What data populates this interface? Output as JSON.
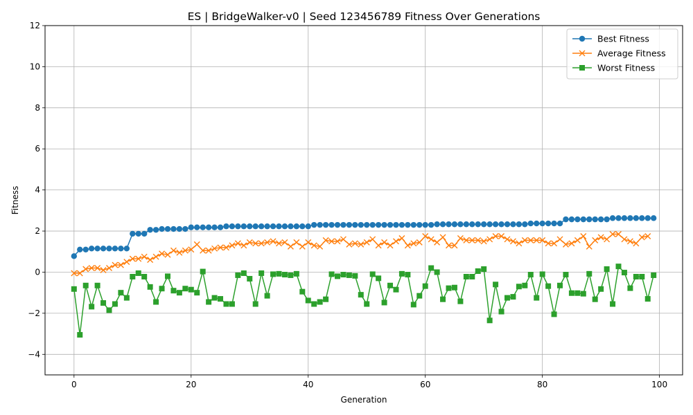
{
  "chart_data": {
    "type": "line",
    "title": "ES | BridgeWalker-v0 | Seed 123456789 Fitness Over Generations",
    "xlabel": "Generation",
    "ylabel": "Fitness",
    "xlim": [
      -4.95,
      103.95
    ],
    "ylim": [
      -5,
      12
    ],
    "xticks": [
      0,
      20,
      40,
      60,
      80,
      100
    ],
    "yticks": [
      -4,
      -2,
      0,
      2,
      4,
      6,
      8,
      10,
      12
    ],
    "grid": true,
    "legend_position": "upper right",
    "series": [
      {
        "name": "Best Fitness",
        "color": "#1f77b4",
        "marker": "circle",
        "values": [
          0.78,
          1.1,
          1.1,
          1.15,
          1.15,
          1.15,
          1.15,
          1.15,
          1.15,
          1.15,
          1.87,
          1.87,
          1.87,
          2.06,
          2.06,
          2.1,
          2.1,
          2.1,
          2.1,
          2.1,
          2.18,
          2.18,
          2.18,
          2.18,
          2.18,
          2.18,
          2.23,
          2.23,
          2.23,
          2.23,
          2.23,
          2.23,
          2.23,
          2.23,
          2.23,
          2.23,
          2.23,
          2.23,
          2.23,
          2.23,
          2.23,
          2.3,
          2.3,
          2.3,
          2.3,
          2.3,
          2.3,
          2.3,
          2.3,
          2.3,
          2.3,
          2.3,
          2.3,
          2.3,
          2.3,
          2.3,
          2.3,
          2.3,
          2.3,
          2.3,
          2.3,
          2.3,
          2.33,
          2.33,
          2.33,
          2.33,
          2.33,
          2.33,
          2.33,
          2.33,
          2.33,
          2.33,
          2.33,
          2.33,
          2.33,
          2.33,
          2.33,
          2.33,
          2.37,
          2.37,
          2.37,
          2.37,
          2.37,
          2.37,
          2.57,
          2.57,
          2.57,
          2.57,
          2.57,
          2.57,
          2.57,
          2.57,
          2.63,
          2.63,
          2.63,
          2.63,
          2.63,
          2.63,
          2.63,
          2.63
        ]
      },
      {
        "name": "Average Fitness",
        "color": "#ff7f0e",
        "marker": "x",
        "values": [
          -0.05,
          -0.05,
          0.15,
          0.2,
          0.2,
          0.1,
          0.2,
          0.35,
          0.35,
          0.5,
          0.65,
          0.65,
          0.75,
          0.6,
          0.75,
          0.9,
          0.85,
          1.05,
          0.95,
          1.05,
          1.1,
          1.35,
          1.05,
          1.05,
          1.15,
          1.2,
          1.2,
          1.3,
          1.4,
          1.3,
          1.45,
          1.4,
          1.4,
          1.45,
          1.5,
          1.4,
          1.45,
          1.25,
          1.45,
          1.25,
          1.45,
          1.3,
          1.25,
          1.55,
          1.5,
          1.5,
          1.6,
          1.35,
          1.4,
          1.35,
          1.45,
          1.6,
          1.3,
          1.45,
          1.3,
          1.5,
          1.65,
          1.3,
          1.4,
          1.45,
          1.75,
          1.6,
          1.45,
          1.7,
          1.3,
          1.3,
          1.65,
          1.55,
          1.55,
          1.55,
          1.5,
          1.6,
          1.75,
          1.75,
          1.6,
          1.5,
          1.4,
          1.55,
          1.55,
          1.55,
          1.55,
          1.4,
          1.4,
          1.6,
          1.35,
          1.4,
          1.55,
          1.75,
          1.25,
          1.55,
          1.7,
          1.6,
          1.85,
          1.85,
          1.6,
          1.5,
          1.4,
          1.7,
          1.75
        ]
      },
      {
        "name": "Worst Fitness",
        "color": "#2ca02c",
        "marker": "square",
        "values": [
          -0.82,
          -3.05,
          -0.65,
          -1.68,
          -0.65,
          -1.5,
          -1.85,
          -1.55,
          -1.0,
          -1.25,
          -0.22,
          -0.05,
          -0.22,
          -0.72,
          -1.45,
          -0.8,
          -0.2,
          -0.9,
          -1.0,
          -0.8,
          -0.85,
          -1.0,
          0.03,
          -1.45,
          -1.25,
          -1.3,
          -1.55,
          -1.55,
          -0.15,
          -0.05,
          -0.32,
          -1.55,
          -0.05,
          -1.15,
          -0.1,
          -0.08,
          -0.12,
          -0.15,
          -0.08,
          -0.95,
          -1.38,
          -1.55,
          -1.45,
          -1.32,
          -0.1,
          -0.2,
          -0.12,
          -0.15,
          -0.18,
          -1.1,
          -1.55,
          -0.1,
          -0.3,
          -1.48,
          -0.65,
          -0.85,
          -0.08,
          -0.12,
          -1.58,
          -1.15,
          -0.68,
          0.2,
          0.0,
          -1.32,
          -0.78,
          -0.75,
          -1.42,
          -0.22,
          -0.22,
          0.05,
          0.15,
          -2.35,
          -0.6,
          -1.92,
          -1.25,
          -1.2,
          -0.7,
          -0.65,
          -0.12,
          -1.25,
          -0.1,
          -0.68,
          -2.05,
          -0.65,
          -0.12,
          -1.02,
          -1.02,
          -1.05,
          -0.08,
          -1.32,
          -0.82,
          0.15,
          -1.55,
          0.28,
          -0.02,
          -0.78,
          -0.22,
          -0.22,
          -1.3,
          -0.15
        ]
      }
    ]
  }
}
